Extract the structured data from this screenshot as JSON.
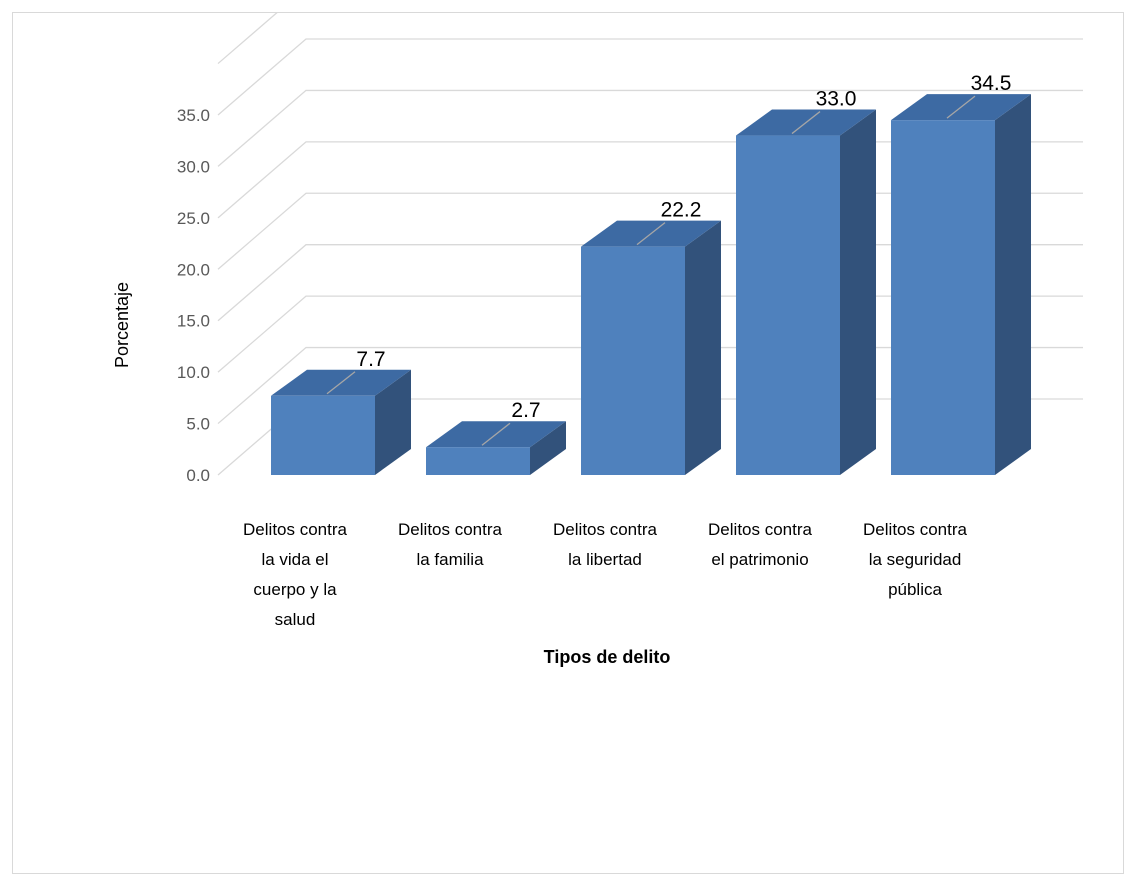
{
  "chart_data": {
    "type": "bar",
    "title": "",
    "xlabel": "Tipos de delito",
    "ylabel": "Porcentaje",
    "categories": [
      [
        "Delitos contra",
        "la vida el",
        "cuerpo y la",
        "salud"
      ],
      [
        "Delitos contra",
        "la familia"
      ],
      [
        "Delitos contra",
        "la libertad"
      ],
      [
        "Delitos contra",
        "el patrimonio"
      ],
      [
        "Delitos contra",
        "la seguridad",
        "pública"
      ]
    ],
    "values": [
      7.7,
      2.7,
      22.2,
      33.0,
      34.5
    ],
    "value_labels": [
      "7.7",
      "2.7",
      "22.2",
      "33.0",
      "34.5"
    ],
    "ylim": [
      0,
      35
    ],
    "yticks": [
      "0.0",
      "5.0",
      "10.0",
      "15.0",
      "20.0",
      "25.0",
      "30.0",
      "35.0"
    ],
    "grid": true,
    "three_d": true,
    "colors": {
      "bar_front": "#4f81bd",
      "bar_top": "#3d6aa3",
      "bar_side": "#32527b",
      "grid": "#d9d9d9"
    }
  }
}
